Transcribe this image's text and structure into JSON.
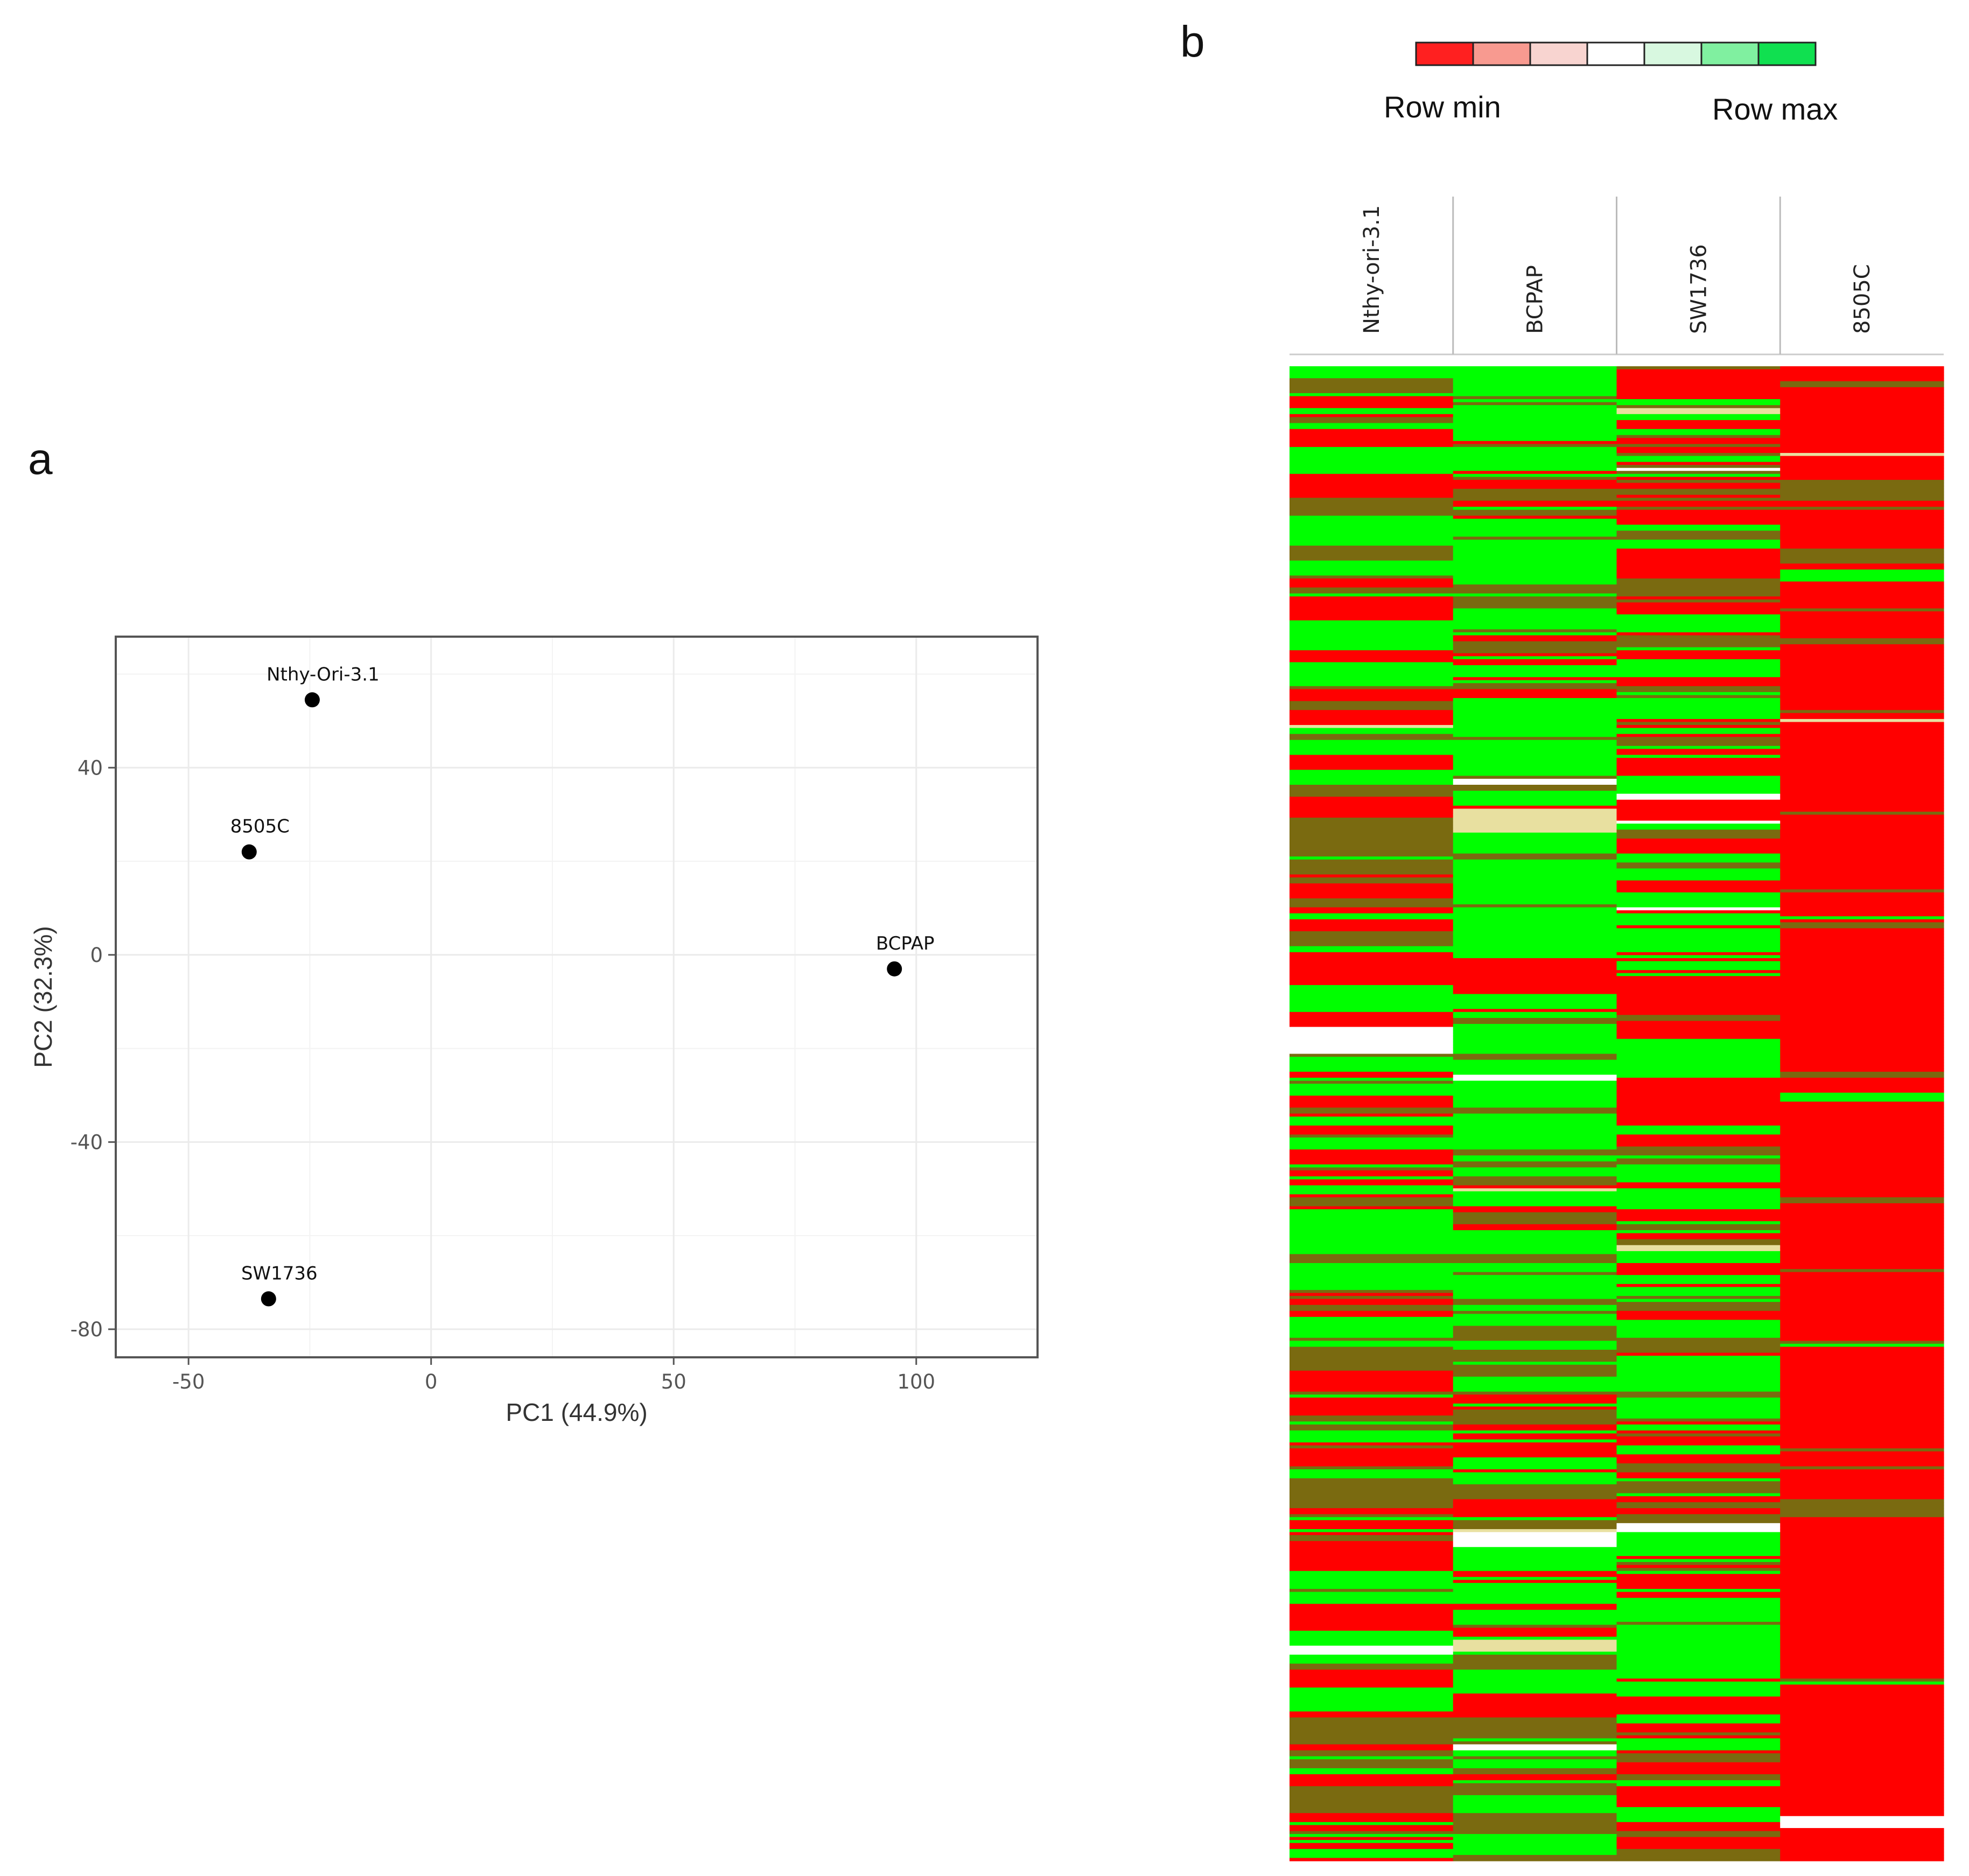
{
  "panels": {
    "a": "a",
    "b": "b"
  },
  "chart_data": [
    {
      "type": "scatter",
      "panel": "a",
      "title": "",
      "xlabel": "PC1 (44.9%)",
      "ylabel": "PC2 (32.3%)",
      "xlim": [
        -65,
        125
      ],
      "ylim": [
        -86,
        68
      ],
      "xticks": [
        -50,
        0,
        50,
        100
      ],
      "yticks": [
        40,
        0,
        -40,
        -80
      ],
      "grid": true,
      "points": [
        {
          "label": "Nthy-Ori-3.1",
          "x": -24.5,
          "y": 54.5
        },
        {
          "label": "8505C",
          "x": -37.5,
          "y": 22
        },
        {
          "label": "BCPAP",
          "x": 95.5,
          "y": -3
        },
        {
          "label": "SW1736",
          "x": -33.5,
          "y": -73.5
        }
      ]
    },
    {
      "type": "heatmap",
      "panel": "b",
      "title": "",
      "legend": {
        "min_label": "Row min",
        "max_label": "Row max",
        "colors": [
          "#ff2020",
          "#f89a90",
          "#f8d4d0",
          "#ffffff",
          "#d8f8e0",
          "#80f0a0",
          "#10e050"
        ]
      },
      "columns": [
        "Nthy-ori-3.1",
        "BCPAP",
        "SW1736",
        "8505C"
      ],
      "row_count": 500,
      "palette": {
        "low": "#ff0000",
        "high": "#00ff00",
        "mid": "#7a6a10",
        "light": "#e8e0a0",
        "white": "#ffffff"
      },
      "column_profiles": [
        "mixed: predominantly red and green bands with olive/brown intermediates",
        "predominantly green with bright-green blocks and some red",
        "mixed red and green with red blocks",
        "predominantly solid red with sparse green/olive lines"
      ]
    }
  ]
}
